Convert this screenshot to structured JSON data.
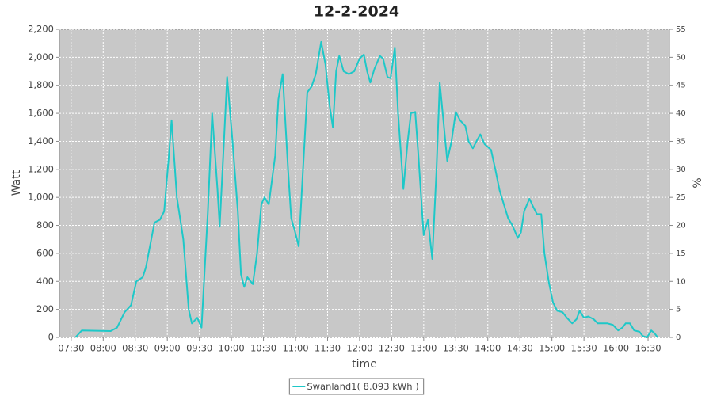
{
  "chart_data": {
    "type": "line",
    "title": "12-2-2024",
    "x_label": "time",
    "y_label": "Watt",
    "y2_label": "%",
    "xlim": [
      "07:19",
      "16:50"
    ],
    "xticks": [
      "07:30",
      "08:00",
      "08:30",
      "09:00",
      "09:30",
      "10:00",
      "10:30",
      "11:00",
      "11:30",
      "12:00",
      "12:30",
      "13:00",
      "13:30",
      "14:00",
      "14:30",
      "15:00",
      "15:30",
      "16:00",
      "16:30"
    ],
    "ylim": [
      0,
      2200
    ],
    "yticks": [
      0,
      200,
      400,
      600,
      800,
      {
        "value": 1000,
        "label": "1,000"
      },
      {
        "value": 1200,
        "label": "1,200"
      },
      {
        "value": 1400,
        "label": "1,400"
      },
      {
        "value": 1600,
        "label": "1,600"
      },
      {
        "value": 1800,
        "label": "1,800"
      },
      {
        "value": 2000,
        "label": "2,000"
      },
      {
        "value": 2200,
        "label": "2,200"
      }
    ],
    "y2lim": [
      0,
      55
    ],
    "y2ticks": [
      0,
      5,
      10,
      15,
      20,
      25,
      30,
      35,
      40,
      45,
      50,
      55
    ],
    "grid": true,
    "legend": "bottom",
    "x": [
      "07:34",
      "07:40",
      "08:07",
      "08:13",
      "08:20",
      "08:26",
      "08:31",
      "08:37",
      "08:40",
      "08:48",
      "08:53",
      "08:57",
      "09:01",
      "09:04",
      "09:09",
      "09:15",
      "09:20",
      "09:23",
      "09:28",
      "09:32",
      "09:38",
      "09:42",
      "09:47",
      "09:49",
      "09:53",
      "09:56",
      "10:01",
      "10:06",
      "10:09",
      "10:12",
      "10:15",
      "10:20",
      "10:24",
      "10:28",
      "10:31",
      "10:35",
      "10:41",
      "10:44",
      "10:48",
      "10:53",
      "10:56",
      "10:59",
      "11:03",
      "11:07",
      "11:11",
      "11:15",
      "11:19",
      "11:24",
      "11:28",
      "11:32",
      "11:35",
      "11:38",
      "11:41",
      "11:45",
      "11:50",
      "11:55",
      "12:00",
      "12:04",
      "12:07",
      "12:10",
      "12:14",
      "12:19",
      "12:22",
      "12:26",
      "12:29",
      "12:33",
      "12:36",
      "12:41",
      "12:45",
      "12:48",
      "12:52",
      "12:55",
      "13:00",
      "13:04",
      "13:06",
      "13:08",
      "13:12",
      "13:15",
      "13:19",
      "13:22",
      "13:26",
      "13:30",
      "13:34",
      "13:39",
      "13:42",
      "13:46",
      "13:50",
      "13:53",
      "13:57",
      "14:03",
      "14:07",
      "14:11",
      "14:15",
      "14:19",
      "14:23",
      "14:28",
      "14:31",
      "14:34",
      "14:39",
      "14:42",
      "14:46",
      "14:50",
      "14:53",
      "14:57",
      "15:01",
      "15:05",
      "15:10",
      "15:14",
      "15:19",
      "15:23",
      "15:26",
      "15:30",
      "15:34",
      "15:39",
      "15:43",
      "15:48",
      "15:52",
      "15:57",
      "16:02",
      "16:06",
      "16:09",
      "16:13",
      "16:17",
      "16:22",
      "16:25",
      "16:29",
      "16:33",
      "16:36",
      "16:39"
    ],
    "series": [
      {
        "name": "Swanland1( 8.093 kWh )",
        "color": "#1ec8c8",
        "values": [
          0,
          50,
          45,
          70,
          180,
          230,
          400,
          430,
          500,
          820,
          840,
          900,
          1250,
          1550,
          1000,
          700,
          200,
          100,
          140,
          70,
          900,
          1600,
          1050,
          790,
          1400,
          1860,
          1400,
          900,
          450,
          360,
          430,
          380,
          600,
          950,
          1000,
          950,
          1300,
          1700,
          1880,
          1200,
          850,
          770,
          650,
          1200,
          1750,
          1790,
          1880,
          2110,
          1950,
          1650,
          1500,
          1900,
          2010,
          1900,
          1880,
          1900,
          1990,
          2020,
          1900,
          1820,
          1920,
          2010,
          1990,
          1860,
          1850,
          2070,
          1600,
          1060,
          1400,
          1600,
          1610,
          1300,
          730,
          840,
          700,
          560,
          1200,
          1820,
          1500,
          1260,
          1400,
          1610,
          1550,
          1510,
          1400,
          1350,
          1410,
          1450,
          1380,
          1340,
          1200,
          1050,
          950,
          850,
          800,
          710,
          750,
          900,
          990,
          940,
          880,
          880,
          600,
          400,
          250,
          190,
          180,
          140,
          100,
          130,
          190,
          140,
          150,
          130,
          100,
          100,
          100,
          90,
          50,
          70,
          100,
          100,
          50,
          40,
          10,
          0,
          50,
          30,
          0
        ]
      }
    ]
  }
}
